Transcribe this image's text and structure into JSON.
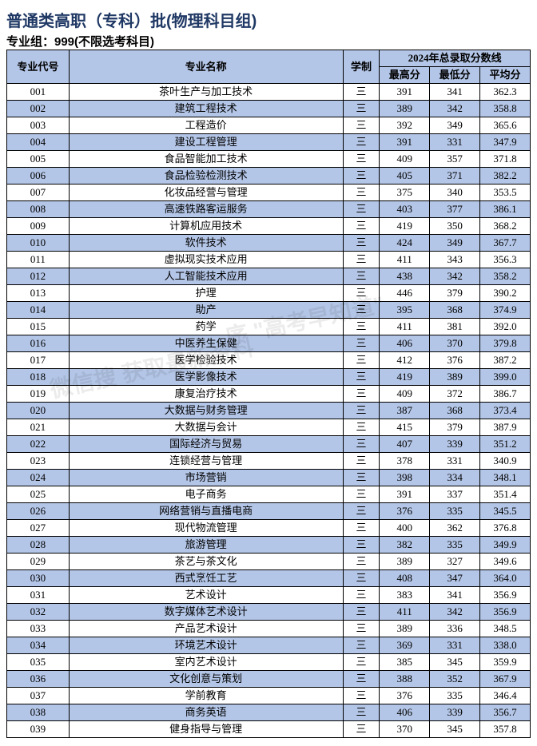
{
  "title": "普通类高职（专科）批(物理科目组)",
  "subtitle": "专业组：999(不限选考科目)",
  "header": {
    "code": "专业代号",
    "name": "专业名称",
    "system": "学制",
    "score_group": "2024年总录取分数线",
    "max": "最高分",
    "min": "最低分",
    "avg": "平均分"
  },
  "system_value": "三",
  "watermark1": "序 \"高考早知道\"",
  "watermark2": "微信搜            获取最新资料",
  "rows": [
    {
      "code": "001",
      "name": "茶叶生产与加工技术",
      "max": "391",
      "min": "341",
      "avg": "362.3"
    },
    {
      "code": "002",
      "name": "建筑工程技术",
      "max": "389",
      "min": "342",
      "avg": "358.8"
    },
    {
      "code": "003",
      "name": "工程造价",
      "max": "392",
      "min": "349",
      "avg": "365.6"
    },
    {
      "code": "004",
      "name": "建设工程管理",
      "max": "391",
      "min": "331",
      "avg": "347.9"
    },
    {
      "code": "005",
      "name": "食品智能加工技术",
      "max": "409",
      "min": "357",
      "avg": "371.8"
    },
    {
      "code": "006",
      "name": "食品检验检测技术",
      "max": "405",
      "min": "371",
      "avg": "382.2"
    },
    {
      "code": "007",
      "name": "化妆品经营与管理",
      "max": "375",
      "min": "340",
      "avg": "353.5"
    },
    {
      "code": "008",
      "name": "高速铁路客运服务",
      "max": "403",
      "min": "377",
      "avg": "386.1"
    },
    {
      "code": "009",
      "name": "计算机应用技术",
      "max": "419",
      "min": "350",
      "avg": "368.2"
    },
    {
      "code": "010",
      "name": "软件技术",
      "max": "424",
      "min": "349",
      "avg": "367.7"
    },
    {
      "code": "011",
      "name": "虚拟现实技术应用",
      "max": "411",
      "min": "343",
      "avg": "356.3"
    },
    {
      "code": "012",
      "name": "人工智能技术应用",
      "max": "438",
      "min": "342",
      "avg": "358.2"
    },
    {
      "code": "013",
      "name": "护理",
      "max": "446",
      "min": "379",
      "avg": "390.2"
    },
    {
      "code": "014",
      "name": "助产",
      "max": "395",
      "min": "368",
      "avg": "374.9"
    },
    {
      "code": "015",
      "name": "药学",
      "max": "411",
      "min": "381",
      "avg": "392.0"
    },
    {
      "code": "016",
      "name": "中医养生保健",
      "max": "406",
      "min": "370",
      "avg": "379.8"
    },
    {
      "code": "017",
      "name": "医学检验技术",
      "max": "412",
      "min": "376",
      "avg": "387.2"
    },
    {
      "code": "018",
      "name": "医学影像技术",
      "max": "419",
      "min": "389",
      "avg": "399.0"
    },
    {
      "code": "019",
      "name": "康复治疗技术",
      "max": "409",
      "min": "372",
      "avg": "386.7"
    },
    {
      "code": "020",
      "name": "大数据与财务管理",
      "max": "387",
      "min": "368",
      "avg": "373.4"
    },
    {
      "code": "021",
      "name": "大数据与会计",
      "max": "415",
      "min": "379",
      "avg": "387.9"
    },
    {
      "code": "022",
      "name": "国际经济与贸易",
      "max": "407",
      "min": "339",
      "avg": "351.2"
    },
    {
      "code": "023",
      "name": "连锁经营与管理",
      "max": "378",
      "min": "331",
      "avg": "340.9"
    },
    {
      "code": "024",
      "name": "市场营销",
      "max": "398",
      "min": "334",
      "avg": "348.1"
    },
    {
      "code": "025",
      "name": "电子商务",
      "max": "391",
      "min": "337",
      "avg": "351.4"
    },
    {
      "code": "026",
      "name": "网络营销与直播电商",
      "max": "376",
      "min": "335",
      "avg": "345.5"
    },
    {
      "code": "027",
      "name": "现代物流管理",
      "max": "400",
      "min": "362",
      "avg": "376.8"
    },
    {
      "code": "028",
      "name": "旅游管理",
      "max": "382",
      "min": "335",
      "avg": "349.9"
    },
    {
      "code": "029",
      "name": "茶艺与茶文化",
      "max": "389",
      "min": "327",
      "avg": "349.6"
    },
    {
      "code": "030",
      "name": "西式烹饪工艺",
      "max": "408",
      "min": "347",
      "avg": "364.0"
    },
    {
      "code": "031",
      "name": "艺术设计",
      "max": "383",
      "min": "341",
      "avg": "356.9"
    },
    {
      "code": "032",
      "name": "数字媒体艺术设计",
      "max": "411",
      "min": "342",
      "avg": "356.9"
    },
    {
      "code": "033",
      "name": "产品艺术设计",
      "max": "389",
      "min": "336",
      "avg": "348.5"
    },
    {
      "code": "034",
      "name": "环境艺术设计",
      "max": "369",
      "min": "331",
      "avg": "338.0"
    },
    {
      "code": "035",
      "name": "室内艺术设计",
      "max": "385",
      "min": "345",
      "avg": "359.9"
    },
    {
      "code": "036",
      "name": "文化创意与策划",
      "max": "388",
      "min": "352",
      "avg": "367.9"
    },
    {
      "code": "037",
      "name": "学前教育",
      "max": "376",
      "min": "335",
      "avg": "346.4"
    },
    {
      "code": "038",
      "name": "商务英语",
      "max": "406",
      "min": "339",
      "avg": "356.7"
    },
    {
      "code": "039",
      "name": "健身指导与管理",
      "max": "370",
      "min": "345",
      "avg": "357.8"
    }
  ]
}
